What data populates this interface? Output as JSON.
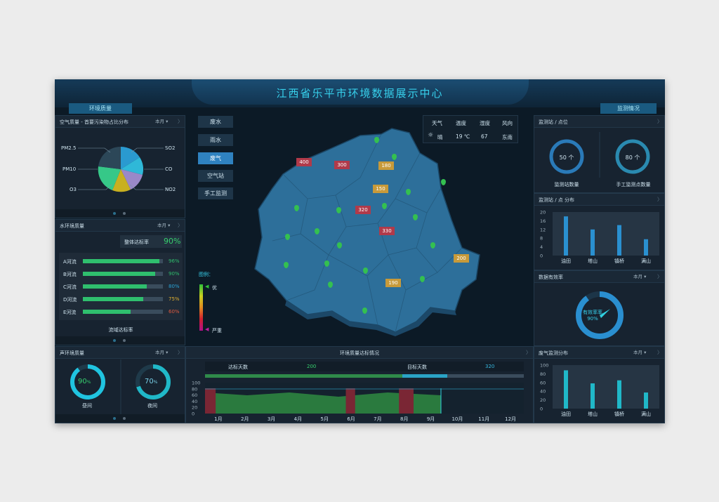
{
  "title": "江西省乐平市环境数据展示中心",
  "header_tabs": {
    "left": "环境质量",
    "right": "监测情况"
  },
  "air": {
    "title": "空气质量 - 首要污染物占比分布",
    "period": "本月",
    "labels": [
      "PM2.5",
      "SO2",
      "PM10",
      "CO",
      "O3",
      "NO2"
    ]
  },
  "water": {
    "title": "水环境质量",
    "period": "本月",
    "overall_label": "整体达标率",
    "overall_value": "90%",
    "rows": [
      {
        "name": "A河流",
        "value": "96%",
        "pct": 96,
        "color": "#2fbf6e"
      },
      {
        "name": "B河流",
        "value": "90%",
        "pct": 90,
        "color": "#2fbf6e"
      },
      {
        "name": "C河流",
        "value": "80%",
        "pct": 80,
        "color": "#2aa3d6"
      },
      {
        "name": "D河流",
        "value": "75%",
        "pct": 75,
        "color": "#e0b030"
      },
      {
        "name": "E河流",
        "value": "60%",
        "pct": 60,
        "color": "#e05a40"
      }
    ],
    "footer": "流域达标率"
  },
  "sound": {
    "title": "声环境质量",
    "period": "本月",
    "day_label": "昼间",
    "day_value": "90",
    "day_pct": 90,
    "night_label": "夜间",
    "night_value": "70",
    "night_pct": 70,
    "unit": "%"
  },
  "nav": [
    "废水",
    "雨水",
    "废气",
    "空气站",
    "手工监测"
  ],
  "nav_active": "废气",
  "weather": {
    "headers": [
      "天气",
      "温度",
      "湿度",
      "风向"
    ],
    "values": [
      "晴",
      "19 ℃",
      "67",
      "东南"
    ]
  },
  "map": {
    "legend_title": "图例：",
    "legend_top": "优",
    "legend_bottom": "严重",
    "markers": [
      {
        "value": "400",
        "color": "#b03a4a"
      },
      {
        "value": "300",
        "color": "#b03a4a"
      },
      {
        "value": "180",
        "color": "#c79a3a"
      },
      {
        "value": "150",
        "color": "#c79a3a"
      },
      {
        "value": "320",
        "color": "#b03a4a"
      },
      {
        "value": "330",
        "color": "#b03a4a"
      },
      {
        "value": "200",
        "color": "#c79a3a"
      },
      {
        "value": "190",
        "color": "#c79a3a"
      }
    ]
  },
  "bottom": {
    "title": "环境质量达标情况",
    "left_label": "达标天数",
    "left_value": "200",
    "right_label": "目标天数",
    "right_value": "320",
    "chart_data": {
      "type": "area",
      "categories": [
        "1月",
        "2月",
        "3月",
        "4月",
        "5月",
        "6月",
        "7月",
        "8月",
        "9月",
        "10月",
        "11月",
        "12月"
      ],
      "yticks": [
        "100",
        "80",
        "60",
        "40",
        "20",
        "0"
      ],
      "ylim": [
        0,
        100
      ]
    }
  },
  "stations": {
    "title": "监测站 / 点位",
    "station_count": "50 个",
    "station_label": "监测站数量",
    "manual_count": "80 个",
    "manual_label": "手工监测点数量"
  },
  "station_dist": {
    "title": "监测站 / 点 分布",
    "chart_data": {
      "type": "bar",
      "categories": [
        "油田",
        "塔山",
        "镇桥",
        "满山"
      ],
      "values": [
        18,
        12,
        14,
        7.5
      ],
      "yticks": [
        "20",
        "16",
        "12",
        "8",
        "4",
        "0"
      ],
      "ylim": [
        0,
        20
      ]
    }
  },
  "efficiency": {
    "title": "数据有效率",
    "period": "本月",
    "label": "有效率率",
    "value": "90%",
    "pct": 90
  },
  "gas": {
    "title": "废气监测分布",
    "period": "本月",
    "chart_data": {
      "type": "bar",
      "categories": [
        "油田",
        "塔山",
        "镇桥",
        "满山"
      ],
      "values": [
        88,
        58,
        65,
        37
      ],
      "yticks": [
        "100",
        "80",
        "60",
        "40",
        "20",
        "0"
      ],
      "ylim": [
        0,
        100
      ]
    }
  }
}
